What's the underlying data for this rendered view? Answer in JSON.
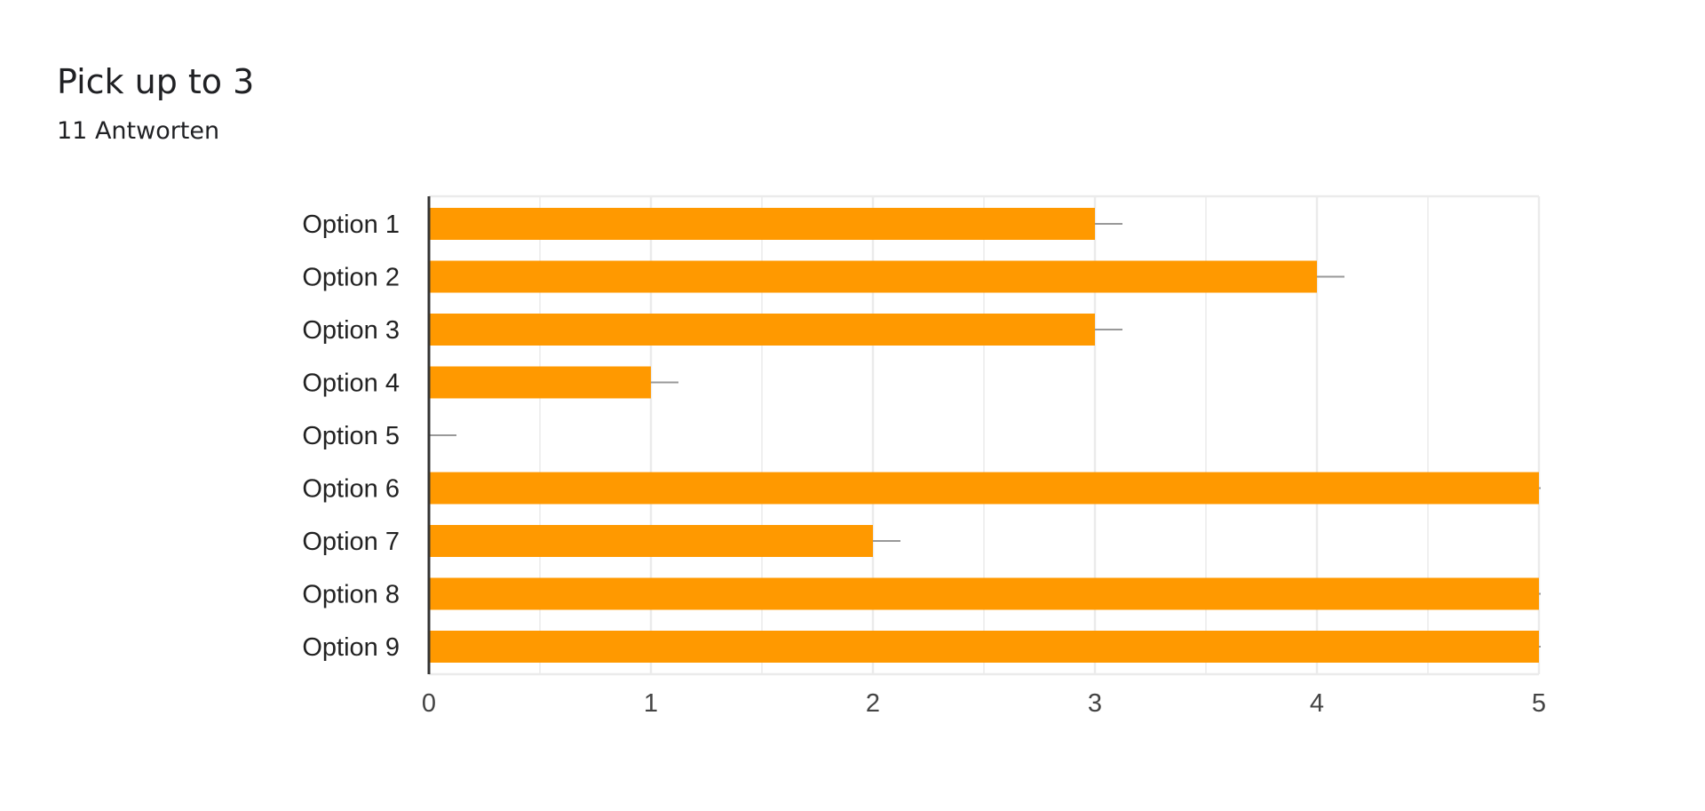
{
  "question": {
    "title": "Pick up to 3",
    "responses": "11 Antworten"
  },
  "chart_data": {
    "type": "bar",
    "orientation": "horizontal",
    "categories": [
      "Option 1",
      "Option 2",
      "Option 3",
      "Option 4",
      "Option 5",
      "Option 6",
      "Option 7",
      "Option 8",
      "Option 9"
    ],
    "values": [
      3,
      4,
      3,
      1,
      0,
      5,
      2,
      5,
      5
    ],
    "xlim": [
      0,
      5
    ],
    "xticks": [
      "0",
      "1",
      "2",
      "3",
      "4",
      "5"
    ],
    "grid": true,
    "colors": {
      "bar": "#ff9900",
      "grid": "#ebebeb",
      "axis": "#333333",
      "connector": "#999999"
    }
  }
}
